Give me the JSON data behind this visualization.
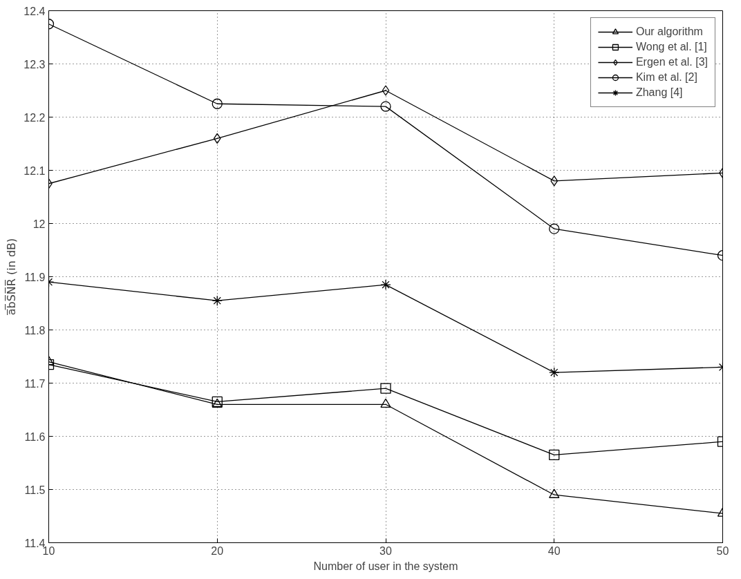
{
  "chart_data": {
    "type": "line",
    "xlabel": "Number of user in the system",
    "ylabel": "a̅b̅S̅N̅R̅ (in dB)",
    "x": [
      10,
      20,
      30,
      40,
      50
    ],
    "series": [
      {
        "name": "Our algorithm",
        "color": "#000000",
        "marker": "triangle",
        "values": [
          11.74,
          11.66,
          11.66,
          11.49,
          11.455
        ]
      },
      {
        "name": "Wong et al. [1]",
        "color": "#000000",
        "marker": "square",
        "values": [
          11.735,
          11.665,
          11.69,
          11.565,
          11.59
        ]
      },
      {
        "name": "Ergen et al. [3]",
        "color": "#000000",
        "marker": "diamond",
        "values": [
          12.075,
          12.16,
          12.25,
          12.08,
          12.095
        ]
      },
      {
        "name": "Kim et al. [2]",
        "color": "#000000",
        "marker": "circle",
        "values": [
          12.375,
          12.225,
          12.22,
          11.99,
          11.94
        ]
      },
      {
        "name": "Zhang [4]",
        "color": "#000000",
        "marker": "cross",
        "values": [
          11.89,
          11.855,
          11.885,
          11.72,
          11.73
        ]
      }
    ],
    "xlim": [
      10,
      50
    ],
    "xticks": [
      10,
      20,
      30,
      40,
      50
    ],
    "ylim": [
      11.4,
      12.4
    ],
    "yticks": [
      11.4,
      11.5,
      11.6,
      11.7,
      11.8,
      11.9,
      {
        "value": 12,
        "label": "12"
      },
      12.1,
      12.2,
      12.3,
      12.4
    ],
    "grid": true,
    "legend": "top right",
    "line_style": "solid"
  }
}
